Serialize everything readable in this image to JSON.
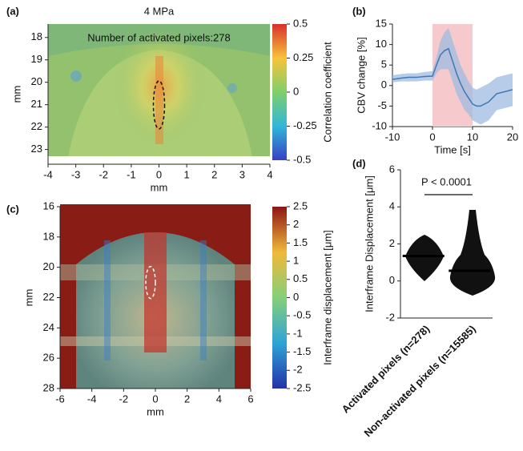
{
  "chart_data": [
    {
      "type": "heatmap",
      "panel": "(a)",
      "title": "4 MPa",
      "annotation": "Number of activated pixels:278",
      "xlabel": "mm",
      "ylabel": "mm",
      "xlim": [
        -4,
        4
      ],
      "xticks": [
        -4,
        -3,
        -2,
        -1,
        0,
        1,
        2,
        3,
        4
      ],
      "ylim": [
        23.3,
        17.4
      ],
      "yticks": [
        18,
        19,
        20,
        21,
        22,
        23
      ],
      "colorbar": {
        "label": "Correlation coefficient",
        "lim": [
          -0.5,
          0.5
        ],
        "ticks": [
          0.5,
          0.25,
          0,
          -0.25,
          -0.5
        ]
      }
    },
    {
      "type": "line",
      "panel": "(b)",
      "xlabel": "Time [s]",
      "ylabel": "CBV change [%]",
      "xlim": [
        -10,
        20
      ],
      "xticks": [
        -10,
        0,
        10,
        20
      ],
      "ylim": [
        -10,
        15
      ],
      "yticks": [
        -10,
        -5,
        0,
        5,
        10,
        15
      ],
      "stimulus": [
        0,
        10
      ],
      "stimulus_color": "#f6c9cc",
      "x": [
        -10,
        -8,
        -6,
        -4,
        -2,
        0,
        1,
        2,
        3,
        4,
        5,
        6,
        7,
        8,
        9,
        10,
        11,
        12,
        14,
        16,
        18,
        20
      ],
      "values": [
        1.5,
        1.8,
        2,
        2,
        2.2,
        2.3,
        5,
        7.5,
        8.5,
        9,
        6,
        3,
        0.5,
        -1.5,
        -3,
        -4.5,
        -5,
        -5,
        -4,
        -2,
        -1.5,
        -1
      ],
      "upper": [
        2.5,
        2.8,
        3,
        3,
        3.3,
        3.5,
        7,
        11,
        13,
        14,
        11,
        8,
        5,
        3,
        1,
        -0.5,
        -1,
        -0.5,
        0.5,
        2,
        2.5,
        3
      ],
      "lower": [
        0.8,
        1,
        1,
        1,
        1.2,
        1.2,
        3,
        4,
        4,
        4,
        1,
        -2,
        -4,
        -6,
        -7,
        -8.5,
        -9,
        -9.5,
        -8.5,
        -6,
        -5.5,
        -5
      ],
      "color": "#3f78b3",
      "band_color": "#9dbbe0"
    },
    {
      "type": "heatmap",
      "panel": "(c)",
      "xlabel": "mm",
      "ylabel": "mm",
      "xlim": [
        -6,
        6
      ],
      "xticks": [
        -6,
        -4,
        -2,
        0,
        2,
        4,
        6
      ],
      "ylim": [
        28,
        16
      ],
      "yticks": [
        16,
        18,
        20,
        22,
        24,
        26,
        28
      ],
      "colorbar": {
        "label": "Interframe displacement [μm]",
        "lim": [
          -2.5,
          2.5
        ],
        "ticks": [
          2.5,
          2,
          1.5,
          1,
          0.5,
          0,
          -0.5,
          -1,
          -1.5,
          -2,
          -2.5
        ]
      }
    },
    {
      "type": "dot",
      "panel": "(d)",
      "ylabel": "Interframe Displacement [μm]",
      "categories": [
        "Activated pixels (n=278)",
        "Non-activated pixels (n=15585)"
      ],
      "values": [
        1.35,
        0.55
      ],
      "color": "#000000",
      "ylim": [
        -2,
        6
      ],
      "yticks": [
        -2,
        0,
        2,
        4,
        6
      ],
      "annotation": "P < 0.0001"
    }
  ]
}
